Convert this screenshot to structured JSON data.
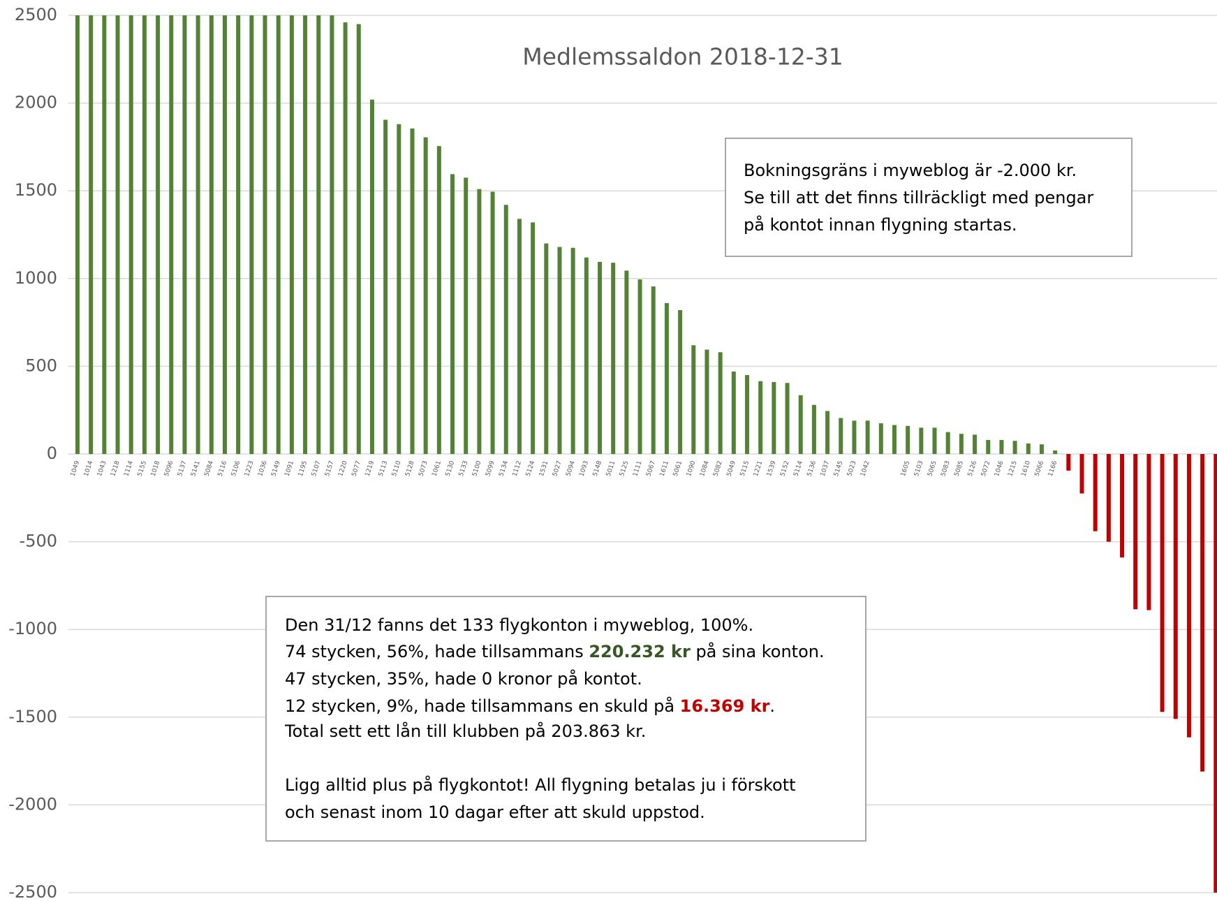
{
  "chart_data": {
    "type": "bar",
    "title": "Medlemssaldon 2018-12-31",
    "categories": [
      "1049",
      "1014",
      "1043",
      "1218",
      "1114",
      "5155",
      "1018",
      "5096",
      "5137",
      "5141",
      "5084",
      "5116",
      "5106",
      "1223",
      "1036",
      "5149",
      "1091",
      "1195",
      "5107",
      "5157",
      "1220",
      "5077",
      "1219",
      "5113",
      "5110",
      "5128",
      "5073",
      "1061",
      "5130",
      "5133",
      "5100",
      "5099",
      "5134",
      "1112",
      "5124",
      "1531",
      "5027",
      "5094",
      "1093",
      "5148",
      "5011",
      "5125",
      "1111",
      "5067",
      "1611",
      "5061",
      "1090",
      "1084",
      "5082",
      "5049",
      "5115",
      "1221",
      "1539",
      "5152",
      "5114",
      "5136",
      "1037",
      "5145",
      "5023",
      "1042",
      null,
      null,
      "1605",
      "5103",
      "5065",
      "5083",
      "5085",
      "5126",
      "5072",
      "1046",
      "1215",
      "1610",
      "5066",
      "1166",
      null,
      null,
      null,
      null,
      null,
      null,
      null,
      null,
      null,
      null,
      null,
      null
    ],
    "values": [
      2500,
      2500,
      2500,
      2500,
      2500,
      2500,
      2500,
      2500,
      2500,
      2500,
      2500,
      2500,
      2500,
      2500,
      2500,
      2500,
      2500,
      2500,
      2500,
      2500,
      2460,
      2450,
      2020,
      1905,
      1880,
      1855,
      1805,
      1755,
      1595,
      1575,
      1510,
      1495,
      1420,
      1340,
      1320,
      1200,
      1180,
      1175,
      1120,
      1095,
      1090,
      1045,
      995,
      955,
      860,
      820,
      620,
      595,
      580,
      470,
      450,
      415,
      410,
      405,
      335,
      280,
      245,
      205,
      190,
      190,
      175,
      165,
      160,
      150,
      150,
      125,
      115,
      110,
      80,
      80,
      75,
      60,
      55,
      20,
      -95,
      -225,
      -440,
      -500,
      -590,
      -885,
      -890,
      -1470,
      -1510,
      -1615,
      -1810,
      -2500
    ],
    "positive_color": "#548235",
    "negative_color": "#c00000",
    "ylim": [
      -2500,
      2500
    ],
    "yticks": [
      -2500,
      -2000,
      -1500,
      -1000,
      -500,
      0,
      500,
      1000,
      1500,
      2000,
      2500
    ],
    "grid": true
  },
  "note_box": {
    "lines": [
      "Bokningsgräns i myweblog är -2.000 kr.",
      "Se till att det finns tillräckligt med pengar",
      "på kontot innan flygning startas."
    ]
  },
  "summary_box": {
    "lines": [
      [
        "Den 31/12 fanns det 133 flygkonton i myweblog, 100%."
      ],
      [
        "74 stycken, 56%, hade tillsammans ",
        "220.232 kr",
        " på sina konton."
      ],
      [
        "47 stycken, 35%, hade 0 kronor på kontot."
      ],
      [
        "12 stycken, 9%, hade tillsammans en skuld på ",
        "16.369 kr",
        "."
      ],
      [
        "Total sett ett lån till klubben på 203.863 kr."
      ],
      [
        "Ligg alltid plus på flygkontot! All flygning betalas ju i förskott"
      ],
      [
        "och senast inom 10 dagar efter att skuld uppstod."
      ]
    ]
  }
}
